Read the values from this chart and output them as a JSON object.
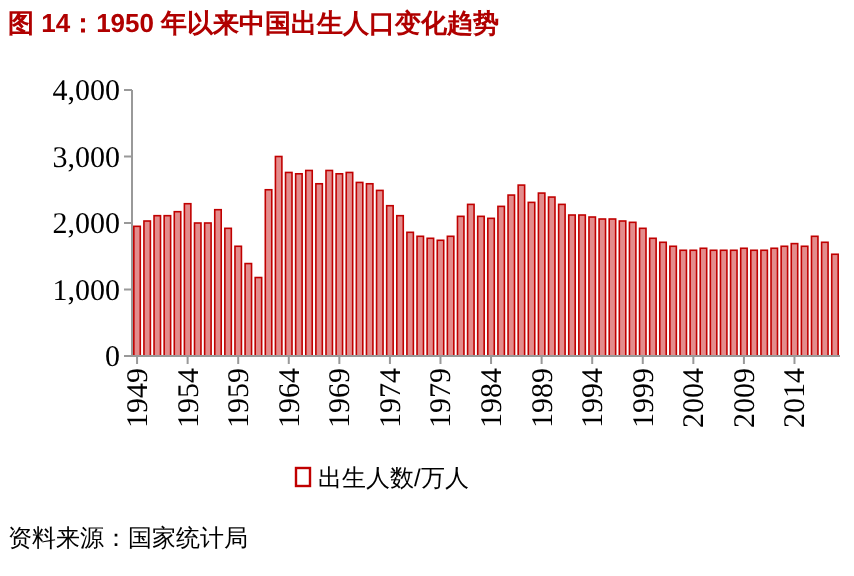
{
  "chart_data": {
    "type": "bar",
    "title": "图 14：1950 年以来中国出生人口变化趋势",
    "categories": [
      "1949",
      null,
      null,
      null,
      null,
      "1954",
      null,
      null,
      null,
      null,
      "1959",
      null,
      null,
      null,
      null,
      "1964",
      null,
      null,
      null,
      null,
      "1969",
      null,
      null,
      null,
      null,
      "1974",
      null,
      null,
      null,
      null,
      "1979",
      null,
      null,
      null,
      null,
      "1984",
      null,
      null,
      null,
      null,
      "1989",
      null,
      null,
      null,
      null,
      "1994",
      null,
      null,
      null,
      null,
      "1999",
      null,
      null,
      null,
      null,
      "2004",
      null,
      null,
      null,
      null,
      "2009",
      null,
      null,
      null,
      null,
      "2014",
      null,
      null,
      null,
      null
    ],
    "series": [
      {
        "name": "出生人数/万人",
        "color": "#c00000",
        "values": [
          1950,
          2030,
          2110,
          2110,
          2170,
          2290,
          2000,
          2000,
          2200,
          1920,
          1650,
          1390,
          1180,
          2500,
          3000,
          2760,
          2740,
          2790,
          2590,
          2790,
          2740,
          2760,
          2610,
          2590,
          2490,
          2260,
          2110,
          1860,
          1800,
          1770,
          1740,
          1800,
          2100,
          2280,
          2100,
          2070,
          2250,
          2420,
          2570,
          2310,
          2450,
          2390,
          2280,
          2120,
          2120,
          2090,
          2060,
          2060,
          2030,
          2010,
          1920,
          1770,
          1710,
          1650,
          1590,
          1590,
          1620,
          1590,
          1590,
          1590,
          1620,
          1590,
          1590,
          1620,
          1650,
          1690,
          1650,
          1800,
          1710,
          1530
        ]
      }
    ],
    "ylim": [
      0,
      4000
    ],
    "yticks": [
      {
        "value": 0,
        "label": "0"
      },
      {
        "value": 1000,
        "label": "1,000"
      },
      {
        "value": 2000,
        "label": "2,000"
      },
      {
        "value": 3000,
        "label": "3,000"
      },
      {
        "value": 4000,
        "label": "4,000"
      }
    ],
    "grid": false,
    "legend": "bottom",
    "annotations": [
      "资料来源：国家统计局"
    ]
  }
}
